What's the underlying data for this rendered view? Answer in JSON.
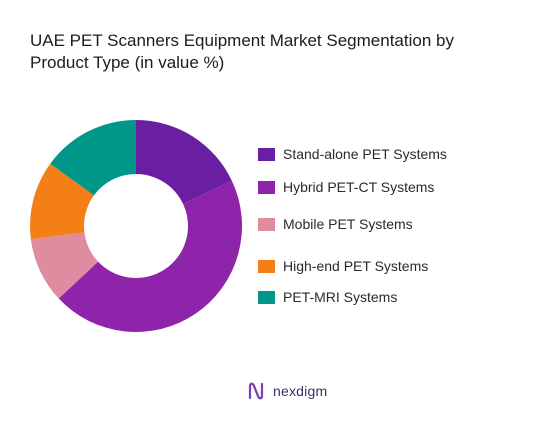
{
  "chart_data": {
    "type": "pie",
    "title": "UAE PET Scanners Equipment  Market Segmentation by\nProduct Type (in value %)",
    "categories": [
      "Stand-alone PET Systems",
      "Hybrid PET-CT Systems",
      "Mobile PET Systems",
      "High-end PET Systems",
      "PET-MRI Systems"
    ],
    "values": [
      18,
      45,
      10,
      12,
      15
    ],
    "colors": [
      "#6a1fa3",
      "#8e24aa",
      "#e08ca0",
      "#f57f17",
      "#009688"
    ],
    "donut": true,
    "legend_placement": "right"
  },
  "brand": {
    "name": "nexdigm",
    "icon": "nexdigm-logo-icon",
    "color": "#3a2f6b"
  }
}
